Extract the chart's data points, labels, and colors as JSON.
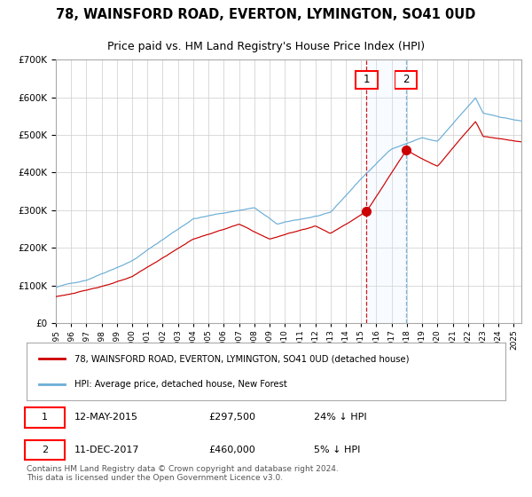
{
  "title": "78, WAINSFORD ROAD, EVERTON, LYMINGTON, SO41 0UD",
  "subtitle": "Price paid vs. HM Land Registry's House Price Index (HPI)",
  "legend_line1": "78, WAINSFORD ROAD, EVERTON, LYMINGTON, SO41 0UD (detached house)",
  "legend_line2": "HPI: Average price, detached house, New Forest",
  "note1": "12-MAY-2015",
  "note1_price": "£297,500",
  "note1_hpi": "24% ↓ HPI",
  "note2": "11-DEC-2017",
  "note2_price": "£460,000",
  "note2_hpi": "5% ↓ HPI",
  "footer": "Contains HM Land Registry data © Crown copyright and database right 2024.\nThis data is licensed under the Open Government Licence v3.0.",
  "hpi_color": "#6baed6",
  "price_color": "#cc0000",
  "sale1_date_num": 2015.36,
  "sale2_date_num": 2017.94,
  "sale1_price": 297500,
  "sale2_price": 460000,
  "ylim": [
    0,
    700000
  ],
  "xlim_start": 1995.0,
  "xlim_end": 2025.5,
  "background_color": "#ffffff",
  "grid_color": "#cccccc",
  "shade_color": "#ddeeff"
}
